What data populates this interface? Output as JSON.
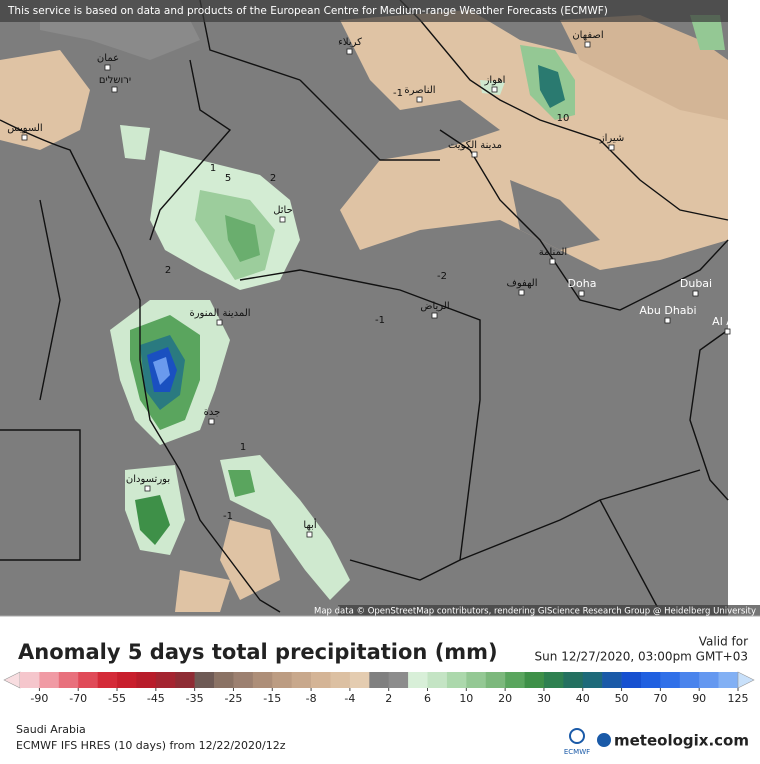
{
  "notice": "This service is based on data and products of the European Centre for Medium-range Weather Forecasts (ECMWF)",
  "attribution": "Map data © OpenStreetMap contributors, rendering GIScience Research Group @ Heidelberg University",
  "map_labels": [
    "کربلاء",
    "اصفهان",
    "عمان",
    "ירושלים",
    "اهواز",
    "الناصرة",
    "السويس",
    "مدينة الكويت",
    "شيراز",
    "حائل",
    "المنامة",
    "الهفوف",
    "Doha",
    "Dubai",
    "المدينة المنورة",
    "الرياض",
    "Abu Dhabi",
    "Al Ain",
    "جدة",
    "بورتسودان",
    "أبها"
  ],
  "contour_labels": [
    "-1",
    "10",
    "1",
    "5",
    "2",
    "-2",
    "-1",
    "2",
    "1",
    "-1"
  ],
  "title": "Anomaly 5 days total precipitation (mm)",
  "valid_label": "Valid for",
  "valid_time": "Sun 12/27/2020, 03:00pm GMT+03",
  "colorbar": {
    "ticks": [
      -90,
      -70,
      -55,
      -45,
      -35,
      -25,
      -15,
      -8,
      -4,
      2,
      6,
      10,
      20,
      30,
      40,
      50,
      70,
      90,
      125
    ],
    "colors": [
      "#f5c6cc",
      "#f09aa4",
      "#e8707c",
      "#e04a58",
      "#d42a38",
      "#c81e2c",
      "#b81c2a",
      "#a42430",
      "#8e2c34",
      "#6e5a55",
      "#8a7264",
      "#9c8070",
      "#ad8e78",
      "#bc9c82",
      "#c8a88c",
      "#d4b496",
      "#dcc0a2",
      "#e4ccb0",
      "#808080",
      "#8c8c8c",
      "#d8efd8",
      "#c4e4c4",
      "#acd8ac",
      "#94c894",
      "#7cb87c",
      "#5aa55e",
      "#3e9048",
      "#2e8050",
      "#247060",
      "#1e6a7a",
      "#1a5aa8",
      "#1650d0",
      "#2060e0",
      "#3070e8",
      "#4a84ec",
      "#6498f0",
      "#82b0f4",
      "#a8ccf8"
    ],
    "low_color": "#f8dde0",
    "high_color": "#c8e0fa"
  },
  "footer": {
    "region": "Saudi Arabia",
    "model": "ECMWF IFS HRES (10 days) from 12/22/2020/12z",
    "ecmwf": "ECMWF",
    "brand": "meteologix.com"
  }
}
